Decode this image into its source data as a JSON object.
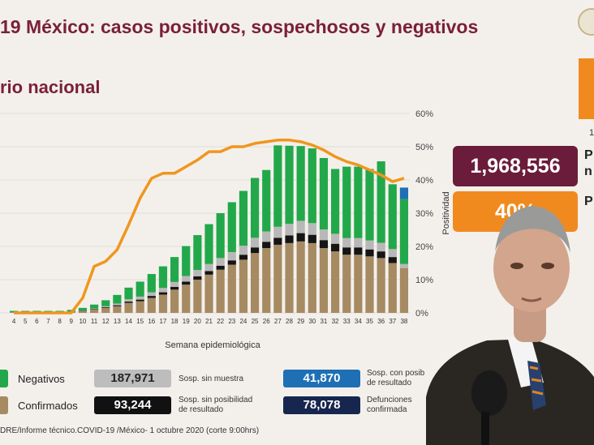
{
  "title": "19 México: casos positivos, sospechosos y negativos",
  "subtitle": "rio nacional",
  "colors": {
    "negativos": "#22a84a",
    "sospechosos": "#b8b8b8",
    "sin_posibilidad": "#151515",
    "confirmados": "#a68a62",
    "sosp_posible": "#1f6fb5",
    "positividad": "#f0961e",
    "brand": "#7a1f3a"
  },
  "chart_data": {
    "type": "bar",
    "xlabel": "Semana epidemiológica",
    "ylabel_right": "Positividad",
    "y_right_ticks": [
      "0%",
      "10%",
      "20%",
      "30%",
      "40%",
      "50%",
      "60%"
    ],
    "y_right_range": [
      0,
      60
    ],
    "categories": [
      "4",
      "5",
      "6",
      "7",
      "8",
      "9",
      "10",
      "11",
      "12",
      "13",
      "14",
      "15",
      "16",
      "17",
      "18",
      "19",
      "20",
      "21",
      "22",
      "23",
      "24",
      "25",
      "26",
      "27",
      "28",
      "29",
      "30",
      "31",
      "32",
      "33",
      "34",
      "35",
      "36",
      "37",
      "38"
    ],
    "stack_order": [
      "confirmados",
      "sin_posibilidad",
      "sospechosos",
      "negativos",
      "sosp_posible"
    ],
    "series": [
      {
        "key": "confirmados",
        "name": "Confirmados",
        "values": [
          0.2,
          0.2,
          0.2,
          0.2,
          0.2,
          0.3,
          0.5,
          1,
          1.5,
          2,
          3,
          3.5,
          4.5,
          5.5,
          7,
          8.5,
          10,
          11.5,
          13,
          14.5,
          16,
          18,
          19.5,
          20.5,
          21,
          21.5,
          21,
          19.5,
          18.5,
          17.5,
          17.5,
          17,
          16.5,
          15,
          13.5
        ]
      },
      {
        "key": "sin_posibilidad",
        "name": "Sosp. sin posibilidad de resultado",
        "values": [
          0,
          0,
          0,
          0,
          0,
          0,
          0.1,
          0.1,
          0.2,
          0.3,
          0.4,
          0.5,
          0.6,
          0.7,
          0.8,
          0.9,
          1,
          1.1,
          1.2,
          1.3,
          1.5,
          1.7,
          1.9,
          2.1,
          2.3,
          2.5,
          2.5,
          2.4,
          2.3,
          2.2,
          2.2,
          2.1,
          2,
          1.8,
          0
        ]
      },
      {
        "key": "sospechosos",
        "name": "Sosp. sin muestra",
        "values": [
          0,
          0,
          0,
          0,
          0,
          0,
          0.1,
          0.2,
          0.3,
          0.5,
          0.7,
          0.9,
          1.1,
          1.3,
          1.5,
          1.7,
          1.9,
          2.1,
          2.3,
          2.5,
          2.7,
          2.9,
          3.1,
          3.3,
          3.5,
          3.7,
          3.5,
          3.2,
          3,
          2.8,
          2.8,
          2.7,
          2.6,
          2.4,
          1.2
        ]
      },
      {
        "key": "negativos",
        "name": "Negativos",
        "values": [
          0.4,
          0.4,
          0.4,
          0.4,
          0.4,
          0.6,
          0.8,
          1.2,
          1.8,
          2.6,
          3.5,
          4.5,
          5.5,
          6.5,
          7.5,
          9,
          10.5,
          12,
          13.5,
          15,
          16.5,
          18,
          18.5,
          24.5,
          23.5,
          22.5,
          22.5,
          21.5,
          19.5,
          21.5,
          21.5,
          21.5,
          24.5,
          19.5,
          19.5
        ]
      },
      {
        "key": "sosp_posible",
        "name": "Sosp. con posibilidad de resultado",
        "values": [
          0,
          0,
          0,
          0,
          0,
          0,
          0,
          0,
          0,
          0,
          0,
          0,
          0,
          0,
          0,
          0,
          0,
          0,
          0,
          0,
          0,
          0,
          0,
          0,
          0,
          0,
          0,
          0,
          0,
          0,
          0,
          0,
          0,
          0,
          3.5
        ]
      }
    ],
    "positividad": {
      "name": "Positividad",
      "values": [
        0,
        0,
        0,
        0,
        0,
        0,
        4.5,
        14,
        15.5,
        19,
        26.5,
        34.5,
        40.5,
        42,
        42,
        44,
        46,
        48.5,
        48.5,
        50,
        50,
        51,
        51.5,
        52,
        52,
        51.5,
        50.5,
        49,
        47,
        45.5,
        44.5,
        43,
        41.5,
        39.5,
        40.5
      ]
    }
  },
  "legend": [
    {
      "key": "negativos",
      "label": "Negativos"
    },
    {
      "key": "confirmados",
      "label": "Confirmados"
    }
  ],
  "stats": [
    {
      "key": "sospechosos",
      "value": "187,971",
      "desc_lines": [
        "Sosp. sin muestra"
      ]
    },
    {
      "key": "sin_posibilidad",
      "value": "93,244",
      "desc_lines": [
        "Sosp. sin posibilidad",
        "de resultado"
      ]
    },
    {
      "key": "sosp_posible",
      "value": "41,870",
      "desc_lines": [
        "Sosp. con posib",
        "de resultado"
      ]
    },
    {
      "key": "defunciones",
      "value": "78,078",
      "desc_lines": [
        "Defunciones",
        "confirmada"
      ]
    }
  ],
  "right_panel": {
    "top_value": "1,968,556",
    "top_label_lines": [
      "P",
      "n"
    ],
    "bottom_value": "40%",
    "bottom_label": "P",
    "cut_text": "1"
  },
  "footer": "DRE/Informe técnico.COVID-19 /México- 1 octubre 2020 (corte 9:00hrs)"
}
